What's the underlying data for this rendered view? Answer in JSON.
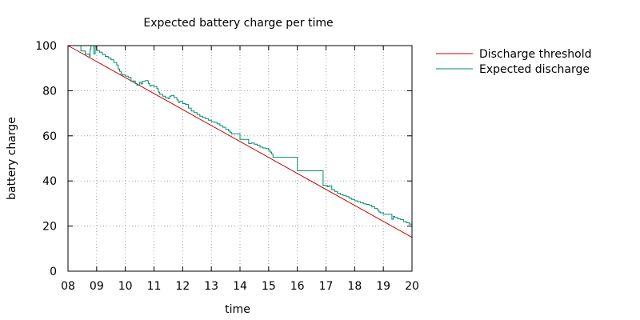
{
  "chart_data": {
    "type": "line",
    "title": "Expected battery charge per time",
    "xlabel": "time",
    "ylabel": "battery charge",
    "xlim": [
      8,
      20
    ],
    "ylim": [
      0,
      100
    ],
    "x_ticks": [
      {
        "value": 8,
        "label": "08"
      },
      {
        "value": 9,
        "label": "09"
      },
      {
        "value": 10,
        "label": "10"
      },
      {
        "value": 11,
        "label": "11"
      },
      {
        "value": 12,
        "label": "12"
      },
      {
        "value": 13,
        "label": "13"
      },
      {
        "value": 14,
        "label": "14"
      },
      {
        "value": 15,
        "label": "15"
      },
      {
        "value": 16,
        "label": "16"
      },
      {
        "value": 17,
        "label": "17"
      },
      {
        "value": 18,
        "label": "18"
      },
      {
        "value": 19,
        "label": "19"
      },
      {
        "value": 20,
        "label": "20"
      }
    ],
    "y_ticks": [
      {
        "value": 0,
        "label": "0"
      },
      {
        "value": 20,
        "label": "20"
      },
      {
        "value": 40,
        "label": "40"
      },
      {
        "value": 60,
        "label": "60"
      },
      {
        "value": 80,
        "label": "80"
      },
      {
        "value": 100,
        "label": "100"
      }
    ],
    "grid": true,
    "legend": "top-right, outside plot",
    "series": [
      {
        "name": "Discharge threshold",
        "color": "#cc0000",
        "x": [
          8,
          20
        ],
        "y": [
          100,
          15
        ]
      },
      {
        "name": "Expected discharge",
        "color": "#008b6b",
        "x": [
          8.0,
          8.45,
          8.6,
          8.75,
          8.77,
          8.8,
          8.85,
          8.9,
          8.95,
          9.0,
          9.1,
          9.2,
          9.3,
          9.4,
          9.5,
          9.6,
          9.7,
          9.75,
          9.8,
          9.85,
          9.9,
          10.0,
          10.1,
          10.2,
          10.35,
          10.4,
          10.5,
          10.55,
          10.6,
          10.7,
          10.8,
          10.85,
          10.9,
          11.0,
          11.1,
          11.15,
          11.2,
          11.3,
          11.4,
          11.5,
          11.55,
          11.6,
          11.7,
          11.8,
          11.85,
          11.9,
          12.0,
          12.1,
          12.2,
          12.3,
          12.4,
          12.5,
          12.6,
          12.7,
          12.8,
          12.9,
          13.0,
          13.1,
          13.2,
          13.3,
          13.4,
          13.5,
          13.6,
          13.65,
          13.7,
          14.0,
          14.3,
          14.4,
          14.5,
          14.6,
          14.7,
          14.8,
          14.9,
          15.0,
          15.05,
          15.1,
          15.15,
          16.0,
          16.9,
          17.0,
          17.05,
          17.1,
          17.2,
          17.3,
          17.4,
          17.5,
          17.6,
          17.7,
          17.8,
          17.9,
          18.0,
          18.1,
          18.2,
          18.3,
          18.4,
          18.5,
          18.6,
          18.7,
          18.8,
          18.85,
          18.9,
          19.0,
          19.3,
          19.35,
          19.4,
          19.5,
          19.6,
          19.7,
          19.8,
          19.9,
          20.0
        ],
        "y": [
          100.0,
          97.6,
          96.2,
          95.1,
          98.5,
          100.0,
          100.0,
          96.3,
          99.5,
          97.8,
          97.1,
          96.0,
          95.2,
          94.5,
          93.7,
          92.5,
          91.4,
          89.6,
          88.6,
          87.3,
          87.0,
          86.5,
          85.9,
          84.3,
          83.2,
          82.5,
          83.8,
          83.0,
          84.2,
          84.5,
          83.2,
          82.1,
          82.3,
          81.9,
          80.9,
          79.4,
          78.4,
          77.6,
          76.8,
          76.5,
          77.6,
          77.9,
          77.0,
          75.9,
          74.8,
          75.3,
          74.3,
          73.9,
          72.3,
          71.0,
          70.3,
          69.5,
          68.7,
          68.1,
          67.6,
          66.9,
          66.2,
          66.0,
          65.3,
          64.5,
          63.8,
          62.9,
          62.2,
          61.6,
          60.9,
          58.4,
          56.6,
          56.8,
          56.3,
          55.8,
          55.0,
          54.6,
          54.3,
          53.7,
          52.8,
          52.0,
          50.5,
          44.5,
          38.1,
          38.0,
          37.4,
          37.8,
          36.1,
          35.4,
          34.5,
          34.0,
          33.6,
          33.1,
          32.4,
          31.8,
          31.2,
          30.8,
          30.4,
          29.9,
          29.6,
          29.3,
          28.5,
          27.8,
          27.1,
          26.2,
          25.9,
          25.2,
          23.0,
          24.3,
          23.8,
          23.2,
          22.9,
          22.0,
          21.5,
          20.9,
          20.2
        ]
      }
    ]
  }
}
